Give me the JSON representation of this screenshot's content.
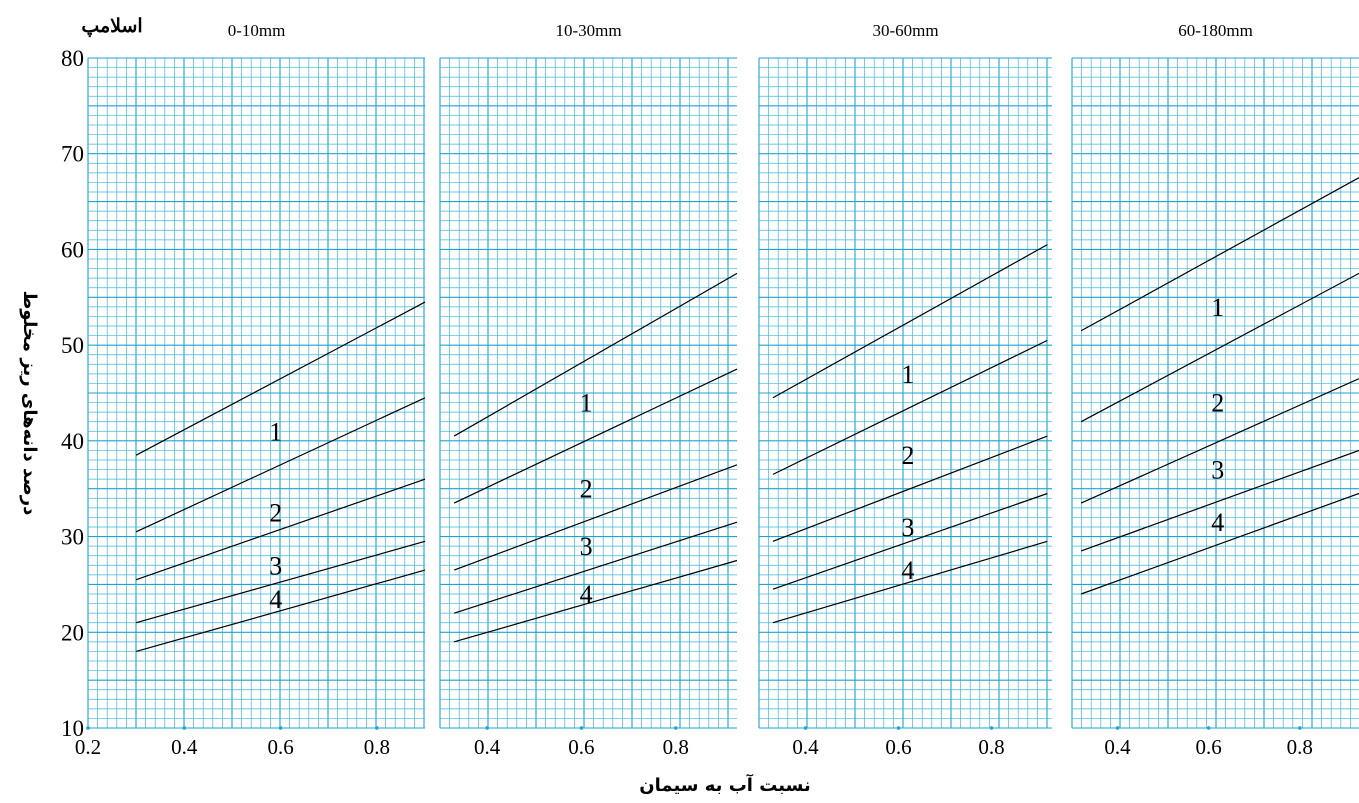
{
  "chart_meta": {
    "corner_label": "اسلامپ",
    "ylabel": "درصد دانه‌های ریز مخلوط",
    "xlabel": "نسبت آب به سیمان",
    "grid_color": "#3fb6dd",
    "grid_major_color": "#1fa3d1",
    "line_color": "#000000",
    "dot_color": "#1fa3d1"
  },
  "chart_data": [
    {
      "type": "line",
      "title": "0-10mm",
      "xlim": [
        0.2,
        0.9
      ],
      "ylim": [
        10,
        80
      ],
      "xticks": [
        "0.2",
        "0.4",
        "0.6",
        "0.8"
      ],
      "yticks": [
        "10",
        "20",
        "30",
        "40",
        "50",
        "60",
        "70",
        "80"
      ],
      "grid": true,
      "series": [
        {
          "name": "1",
          "x": [
            0.3,
            0.9
          ],
          "y": [
            38.5,
            54.5
          ],
          "label_pos": [
            0.59,
            41
          ]
        },
        {
          "name": "2",
          "x": [
            0.3,
            0.9
          ],
          "y": [
            30.5,
            44.5
          ],
          "label_pos": [
            0.59,
            32.5
          ]
        },
        {
          "name": "3",
          "x": [
            0.3,
            0.9
          ],
          "y": [
            25.5,
            36
          ],
          "label_pos": [
            0.59,
            27
          ]
        },
        {
          "name": "4",
          "x": [
            0.3,
            0.9
          ],
          "y": [
            21,
            29.5
          ],
          "label_pos": [
            0.59,
            23.5
          ]
        },
        {
          "name": "",
          "x": [
            0.3,
            0.9
          ],
          "y": [
            18,
            26.5
          ]
        }
      ]
    },
    {
      "type": "line",
      "title": "10-30mm",
      "xlim": [
        0.3,
        0.93
      ],
      "ylim": [
        10,
        80
      ],
      "xticks": [
        "0.4",
        "0.6",
        "0.8"
      ],
      "yticks": [],
      "grid": true,
      "series": [
        {
          "name": "1",
          "x": [
            0.33,
            0.93
          ],
          "y": [
            40.5,
            57.5
          ],
          "label_pos": [
            0.61,
            44
          ]
        },
        {
          "name": "2",
          "x": [
            0.33,
            0.93
          ],
          "y": [
            33.5,
            47.5
          ],
          "label_pos": [
            0.61,
            35
          ]
        },
        {
          "name": "3",
          "x": [
            0.33,
            0.93
          ],
          "y": [
            26.5,
            37.5
          ],
          "label_pos": [
            0.61,
            29
          ]
        },
        {
          "name": "4",
          "x": [
            0.33,
            0.93
          ],
          "y": [
            22,
            31.5
          ],
          "label_pos": [
            0.61,
            24
          ]
        },
        {
          "name": "",
          "x": [
            0.33,
            0.93
          ],
          "y": [
            19,
            27.5
          ]
        }
      ]
    },
    {
      "type": "line",
      "title": "30-60mm",
      "xlim": [
        0.3,
        0.93
      ],
      "ylim": [
        10,
        80
      ],
      "xticks": [
        "0.4",
        "0.6",
        "0.8"
      ],
      "yticks": [],
      "grid": true,
      "series": [
        {
          "name": "1",
          "x": [
            0.33,
            0.92
          ],
          "y": [
            44.5,
            60.5
          ],
          "label_pos": [
            0.62,
            47
          ]
        },
        {
          "name": "2",
          "x": [
            0.33,
            0.92
          ],
          "y": [
            36.5,
            50.5
          ],
          "label_pos": [
            0.62,
            38.5
          ]
        },
        {
          "name": "3",
          "x": [
            0.33,
            0.92
          ],
          "y": [
            29.5,
            40.5
          ],
          "label_pos": [
            0.62,
            31
          ]
        },
        {
          "name": "4",
          "x": [
            0.33,
            0.92
          ],
          "y": [
            24.5,
            34.5
          ],
          "label_pos": [
            0.62,
            26.5
          ]
        },
        {
          "name": "",
          "x": [
            0.33,
            0.92
          ],
          "y": [
            21,
            29.5
          ]
        }
      ]
    },
    {
      "type": "line",
      "title": "60-180mm",
      "xlim": [
        0.3,
        0.93
      ],
      "ylim": [
        10,
        80
      ],
      "xticks": [
        "0.4",
        "0.6",
        "0.8"
      ],
      "yticks": [],
      "grid": true,
      "series": [
        {
          "name": "1",
          "x": [
            0.32,
            0.93
          ],
          "y": [
            51.5,
            67.5
          ],
          "label_pos": [
            0.62,
            54
          ]
        },
        {
          "name": "2",
          "x": [
            0.32,
            0.93
          ],
          "y": [
            42,
            57.5
          ],
          "label_pos": [
            0.62,
            44
          ]
        },
        {
          "name": "3",
          "x": [
            0.32,
            0.93
          ],
          "y": [
            33.5,
            46.5
          ],
          "label_pos": [
            0.62,
            37
          ]
        },
        {
          "name": "4",
          "x": [
            0.32,
            0.93
          ],
          "y": [
            28.5,
            39
          ],
          "label_pos": [
            0.62,
            31.5
          ]
        },
        {
          "name": "",
          "x": [
            0.32,
            0.93
          ],
          "y": [
            24,
            34.5
          ]
        }
      ]
    }
  ]
}
